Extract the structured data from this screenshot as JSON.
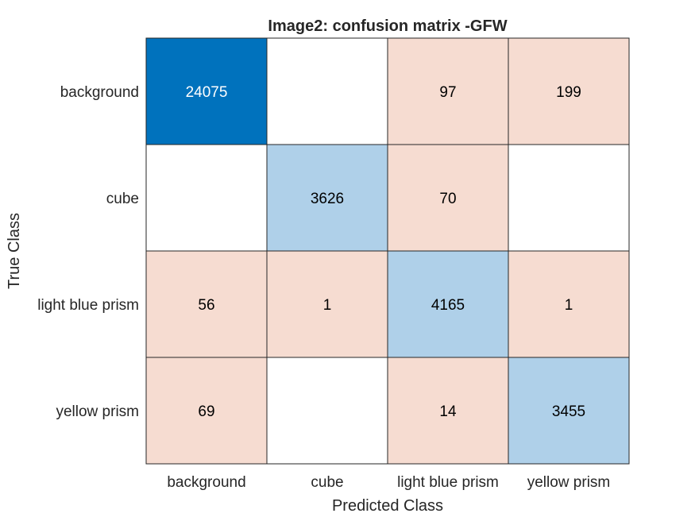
{
  "chart_data": {
    "type": "heatmap",
    "title": "Image2: confusion matrix -GFW",
    "xlabel": "Predicted Class",
    "ylabel": "True Class",
    "row_labels": [
      "background",
      "cube",
      "light blue prism",
      "yellow prism"
    ],
    "col_labels": [
      "background",
      "cube",
      "light blue prism",
      "yellow prism"
    ],
    "values": [
      [
        24075,
        null,
        97,
        199
      ],
      [
        null,
        3626,
        70,
        null
      ],
      [
        56,
        1,
        4165,
        1
      ],
      [
        69,
        null,
        14,
        3455
      ]
    ],
    "colors": {
      "diagonal_high": "#0072bd",
      "diagonal_low": "#afd0e9",
      "off_diagonal": "#f6dcd1",
      "empty": "#ffffff",
      "grid": "#262626",
      "text_dark": "#000000",
      "text_light": "#ffffff"
    }
  }
}
